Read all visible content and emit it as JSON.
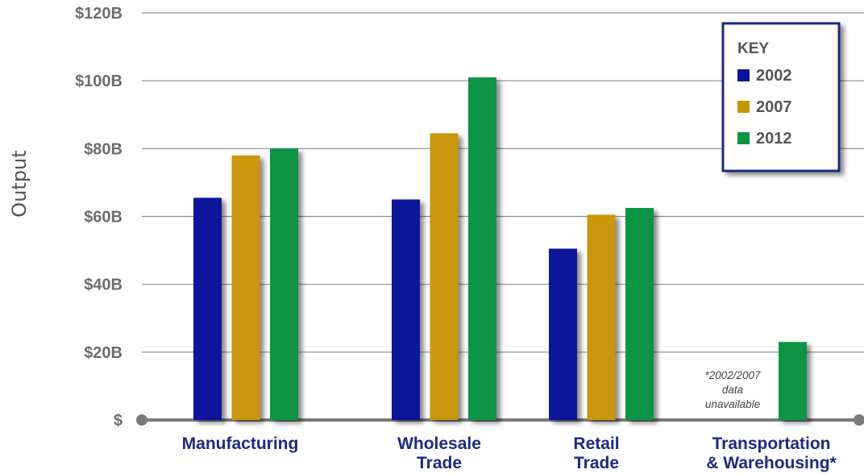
{
  "chart_data": {
    "type": "bar",
    "ylabel": "Output",
    "xlabel": "",
    "ylim": [
      0,
      120
    ],
    "yticks": [
      0,
      20,
      40,
      60,
      80,
      100,
      120
    ],
    "ytick_labels": [
      "$",
      "$20B",
      "$40B",
      "$60B",
      "$80B",
      "$100B",
      "$120B"
    ],
    "categories": [
      [
        "Manufacturing"
      ],
      [
        "Wholesale",
        "Trade"
      ],
      [
        "Retail",
        "Trade"
      ],
      [
        "Transportation",
        "& Warehousing*"
      ]
    ],
    "series": [
      {
        "name": "2002",
        "color": "#0a139a",
        "values": [
          65.5,
          65.0,
          50.5,
          null
        ]
      },
      {
        "name": "2007",
        "color": "#c9960a",
        "values": [
          78.0,
          84.5,
          60.5,
          null
        ]
      },
      {
        "name": "2012",
        "color": "#0a9444",
        "values": [
          80.0,
          101.0,
          62.5,
          23.0
        ]
      }
    ],
    "legend": {
      "title": "KEY",
      "position": "top-right"
    },
    "annotations": [
      {
        "lines": [
          "*2002/2007",
          "data",
          "unavailable"
        ]
      }
    ],
    "grid": true
  }
}
